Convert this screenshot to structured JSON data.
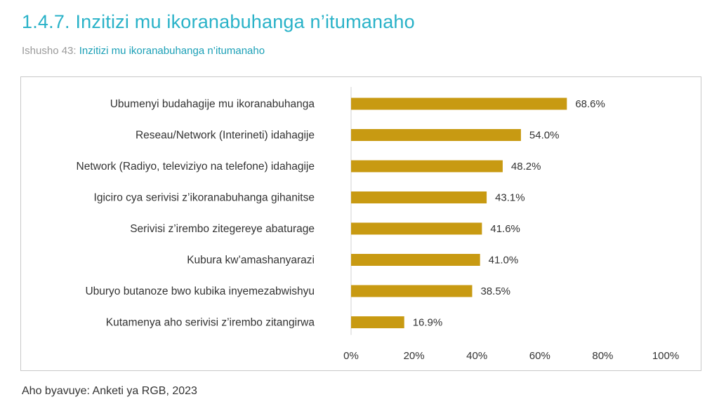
{
  "heading": {
    "number": "1.4.7.",
    "title": "Inzitizi mu ikoranabuhanga n’itumanaho"
  },
  "figure": {
    "label": "Ishusho 43:",
    "title": "Inzitizi mu ikoranabuhanga n’itumanaho"
  },
  "source": "Aho byavuye: Anketi ya RGB, 2023",
  "colors": {
    "bar": "#c89a12",
    "heading": "#29b2c8",
    "subtitle_accent": "#1a9fb6"
  },
  "chart_data": {
    "type": "bar",
    "orientation": "horizontal",
    "categories": [
      "Ubumenyi budahagije mu ikoranabuhanga",
      "Reseau/Network (Interineti) idahagije",
      "Network (Radiyo, televiziyo na telefone) idahagije",
      "Igiciro cya serivisi z’ikoranabuhanga gihanitse",
      "Serivisi z’irembo zitegereye abaturage",
      "Kubura kw’amashanyarazi",
      "Uburyo butanoze bwo kubika inyemezabwishyu",
      "Kutamenya aho serivisi z’irembo zitangirwa"
    ],
    "values": [
      68.6,
      54.0,
      48.2,
      43.1,
      41.6,
      41.0,
      38.5,
      16.9
    ],
    "data_labels": [
      "68.6%",
      "54.0%",
      "48.2%",
      "43.1%",
      "41.6%",
      "41.0%",
      "38.5%",
      "16.9%"
    ],
    "xlim": [
      0,
      100
    ],
    "x_ticks": [
      0,
      20,
      40,
      60,
      80,
      100
    ],
    "x_tick_labels": [
      "0%",
      "20%",
      "40%",
      "60%",
      "80%",
      "100%"
    ],
    "grid": false,
    "legend": "none"
  }
}
